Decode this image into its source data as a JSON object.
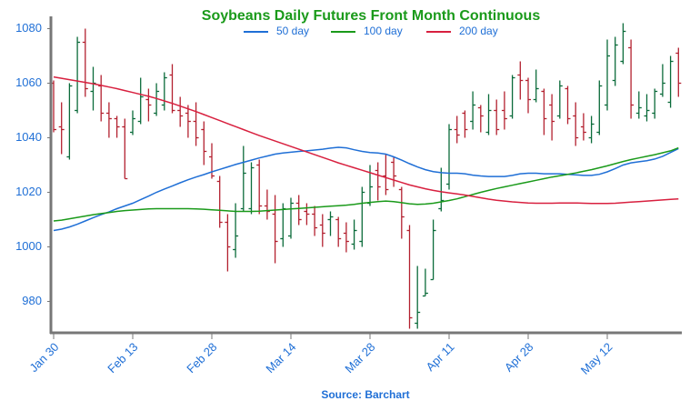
{
  "chart_data": {
    "type": "ohlc",
    "title": "Soybeans Daily Futures Front Month Continuous",
    "source": "Source: Barchart",
    "categories": [
      "Jan 30",
      null,
      null,
      null,
      null,
      null,
      null,
      null,
      null,
      null,
      "Feb 13",
      null,
      null,
      null,
      null,
      null,
      null,
      null,
      null,
      null,
      "Feb 28",
      null,
      null,
      null,
      null,
      null,
      null,
      null,
      null,
      null,
      "Mar 14",
      null,
      null,
      null,
      null,
      null,
      null,
      null,
      null,
      null,
      "Mar 28",
      null,
      null,
      null,
      null,
      null,
      null,
      null,
      null,
      null,
      "Apr 11",
      null,
      null,
      null,
      null,
      null,
      null,
      null,
      null,
      null,
      "Apr 28",
      null,
      null,
      null,
      null,
      null,
      null,
      null,
      null,
      null,
      "May 12",
      null,
      null,
      null,
      null,
      null,
      null,
      null,
      null,
      null
    ],
    "open": [
      1060,
      1044,
      1033,
      1050,
      1075,
      1057,
      1059,
      1049,
      1047,
      1044,
      1042,
      1046,
      1054,
      1049,
      1052,
      1063,
      1050,
      1049,
      1046,
      1043,
      1033,
      1024,
      1009,
      999,
      1014,
      1014,
      1030,
      1015,
      1012,
      1003,
      1004,
      1016,
      1013,
      1012,
      1008,
      1010,
      1010,
      1005,
      1001,
      1002,
      1016,
      1028,
      1026,
      1031,
      1021,
      1006,
      972,
      982,
      988,
      1014,
      1023,
      1043,
      1049,
      1046,
      1051,
      1042,
      1050,
      1050,
      1048,
      1063,
      1061,
      1054,
      1057,
      1052,
      1048,
      1058,
      1048,
      1044,
      1040,
      1042,
      1052,
      1061,
      1068,
      1073,
      1049,
      1048,
      1049,
      1056,
      1053,
      1071
    ],
    "high": [
      1061,
      1053,
      1060,
      1077,
      1080,
      1066,
      1063,
      1053,
      1048,
      1047,
      1050,
      1062,
      1058,
      1060,
      1064,
      1067,
      1055,
      1052,
      1053,
      1046,
      1038,
      1026,
      1012,
      1016,
      1037,
      1031,
      1032,
      1021,
      1019,
      1016,
      1018,
      1019,
      1016,
      1015,
      1012,
      1013,
      1011,
      1009,
      1010,
      1022,
      1030,
      1031,
      1034,
      1033,
      1022,
      1008,
      993,
      992,
      1010,
      1029,
      1045,
      1048,
      1050,
      1057,
      1052,
      1056,
      1054,
      1057,
      1063,
      1068,
      1062,
      1065,
      1058,
      1056,
      1061,
      1059,
      1053,
      1049,
      1048,
      1061,
      1076,
      1077,
      1082,
      1076,
      1057,
      1056,
      1058,
      1067,
      1070,
      1073
    ],
    "low": [
      1042,
      1034,
      1032,
      1049,
      1055,
      1050,
      1046,
      1040,
      1040,
      1025,
      1041,
      1045,
      1046,
      1048,
      1050,
      1049,
      1044,
      1040,
      1037,
      1030,
      1025,
      1007,
      991,
      996,
      1013,
      1012,
      1012,
      1010,
      994,
      1000,
      1003,
      1008,
      1008,
      1004,
      1000,
      1004,
      1000,
      998,
      999,
      1000,
      1015,
      1017,
      1019,
      1022,
      1003,
      970,
      970,
      982,
      988,
      1013,
      1021,
      1038,
      1040,
      1043,
      1042,
      1041,
      1041,
      1043,
      1047,
      1054,
      1049,
      1053,
      1041,
      1039,
      1047,
      1045,
      1037,
      1039,
      1038,
      1041,
      1050,
      1059,
      1067,
      1047,
      1047,
      1046,
      1047,
      1055,
      1051,
      1055
    ],
    "close": [
      1043,
      1043,
      1059,
      1075,
      1058,
      1060,
      1049,
      1047,
      1044,
      1025,
      1047,
      1055,
      1052,
      1057,
      1062,
      1050,
      1048,
      1046,
      1040,
      1035,
      1026,
      1009,
      1000,
      1004,
      1027,
      1029,
      1015,
      1013,
      1002,
      1014,
      1016,
      1010,
      1012,
      1007,
      1005,
      1011,
      1003,
      1002,
      1006,
      1020,
      1022,
      1022,
      1021,
      1026,
      1011,
      974,
      976,
      983,
      1006,
      1017,
      1043,
      1041,
      1043,
      1052,
      1048,
      1050,
      1043,
      1047,
      1062,
      1061,
      1054,
      1058,
      1047,
      1046,
      1059,
      1047,
      1040,
      1042,
      1045,
      1059,
      1070,
      1074,
      1079,
      1052,
      1051,
      1050,
      1057,
      1060,
      1068,
      1060
    ],
    "up_color": "#0b6b3a",
    "down_color": "#b3202f",
    "series": [
      {
        "name": "50 day",
        "color": "#1f6fd6",
        "values": [
          1006,
          1006.5,
          1007.3,
          1008.3,
          1009.5,
          1010.7,
          1011.8,
          1012.8,
          1014,
          1015,
          1016,
          1017.3,
          1018.6,
          1020,
          1021.2,
          1022.3,
          1023.5,
          1024.6,
          1025.6,
          1026.5,
          1027.5,
          1028.4,
          1029.3,
          1030.2,
          1031,
          1031.8,
          1032.6,
          1033.3,
          1034,
          1034.4,
          1034.7,
          1035,
          1035.2,
          1035.5,
          1035.8,
          1036.2,
          1036.5,
          1036.3,
          1035.6,
          1035,
          1034.6,
          1034.4,
          1034,
          1033,
          1031.8,
          1030.5,
          1029.3,
          1028.3,
          1027.6,
          1027.2,
          1027,
          1027,
          1026.8,
          1026.3,
          1026,
          1025.8,
          1025.8,
          1025.8,
          1026.2,
          1026.8,
          1027,
          1027,
          1026.8,
          1026.8,
          1026.8,
          1026.6,
          1026.4,
          1026.2,
          1026.2,
          1026.6,
          1027.5,
          1028.7,
          1030,
          1030.8,
          1031.2,
          1031.6,
          1032.2,
          1033.2,
          1034.6,
          1036
        ]
      },
      {
        "name": "100 day",
        "color": "#1a9a1a",
        "values": [
          1009.5,
          1009.8,
          1010.3,
          1010.8,
          1011.3,
          1011.8,
          1012.2,
          1012.6,
          1013,
          1013.3,
          1013.5,
          1013.7,
          1013.9,
          1014,
          1014,
          1014,
          1014,
          1014,
          1013.9,
          1013.8,
          1013.6,
          1013.4,
          1013.2,
          1013,
          1013,
          1013,
          1013.1,
          1013.3,
          1013.5,
          1013.7,
          1013.9,
          1014.1,
          1014.3,
          1014.5,
          1014.7,
          1014.9,
          1015.1,
          1015.3,
          1015.6,
          1016,
          1016.3,
          1016.6,
          1016.8,
          1016.6,
          1016.2,
          1015.8,
          1015.6,
          1015.7,
          1016,
          1016.5,
          1017,
          1017.6,
          1018.4,
          1019.2,
          1020,
          1020.7,
          1021.4,
          1022,
          1022.6,
          1023.2,
          1023.8,
          1024.4,
          1025,
          1025.6,
          1026.1,
          1026.6,
          1027.1,
          1027.7,
          1028.3,
          1029,
          1029.7,
          1030.5,
          1031.3,
          1032,
          1032.6,
          1033.2,
          1033.8,
          1034.5,
          1035.2,
          1036.3
        ]
      },
      {
        "name": "200 day",
        "color": "#d8203f",
        "values": [
          1062.3,
          1061.8,
          1061.3,
          1060.8,
          1060.3,
          1059.8,
          1059.2,
          1058.6,
          1058,
          1057.3,
          1056.6,
          1055.9,
          1055.2,
          1054.4,
          1053.5,
          1052.6,
          1051.6,
          1050.6,
          1049.6,
          1048.5,
          1047.4,
          1046.3,
          1045.2,
          1044.1,
          1043,
          1041.9,
          1040.8,
          1039.8,
          1038.8,
          1037.8,
          1036.8,
          1035.8,
          1034.8,
          1033.8,
          1032.8,
          1031.8,
          1030.8,
          1029.9,
          1029,
          1028.1,
          1027.2,
          1026.3,
          1025.4,
          1024.5,
          1023.6,
          1022.7,
          1022,
          1021.3,
          1020.7,
          1020.2,
          1019.8,
          1019.4,
          1019,
          1018.5,
          1018,
          1017.5,
          1017.1,
          1016.8,
          1016.5,
          1016.3,
          1016.1,
          1016,
          1016,
          1016,
          1016.1,
          1016.1,
          1016.1,
          1016,
          1015.9,
          1015.9,
          1015.9,
          1016,
          1016.2,
          1016.4,
          1016.6,
          1016.8,
          1017,
          1017.2,
          1017.4,
          1017.6
        ]
      }
    ],
    "ylim": [
      968.5,
      1084.5
    ],
    "yticks": [
      980,
      1000,
      1020,
      1040,
      1060,
      1080
    ],
    "legend": "top"
  }
}
